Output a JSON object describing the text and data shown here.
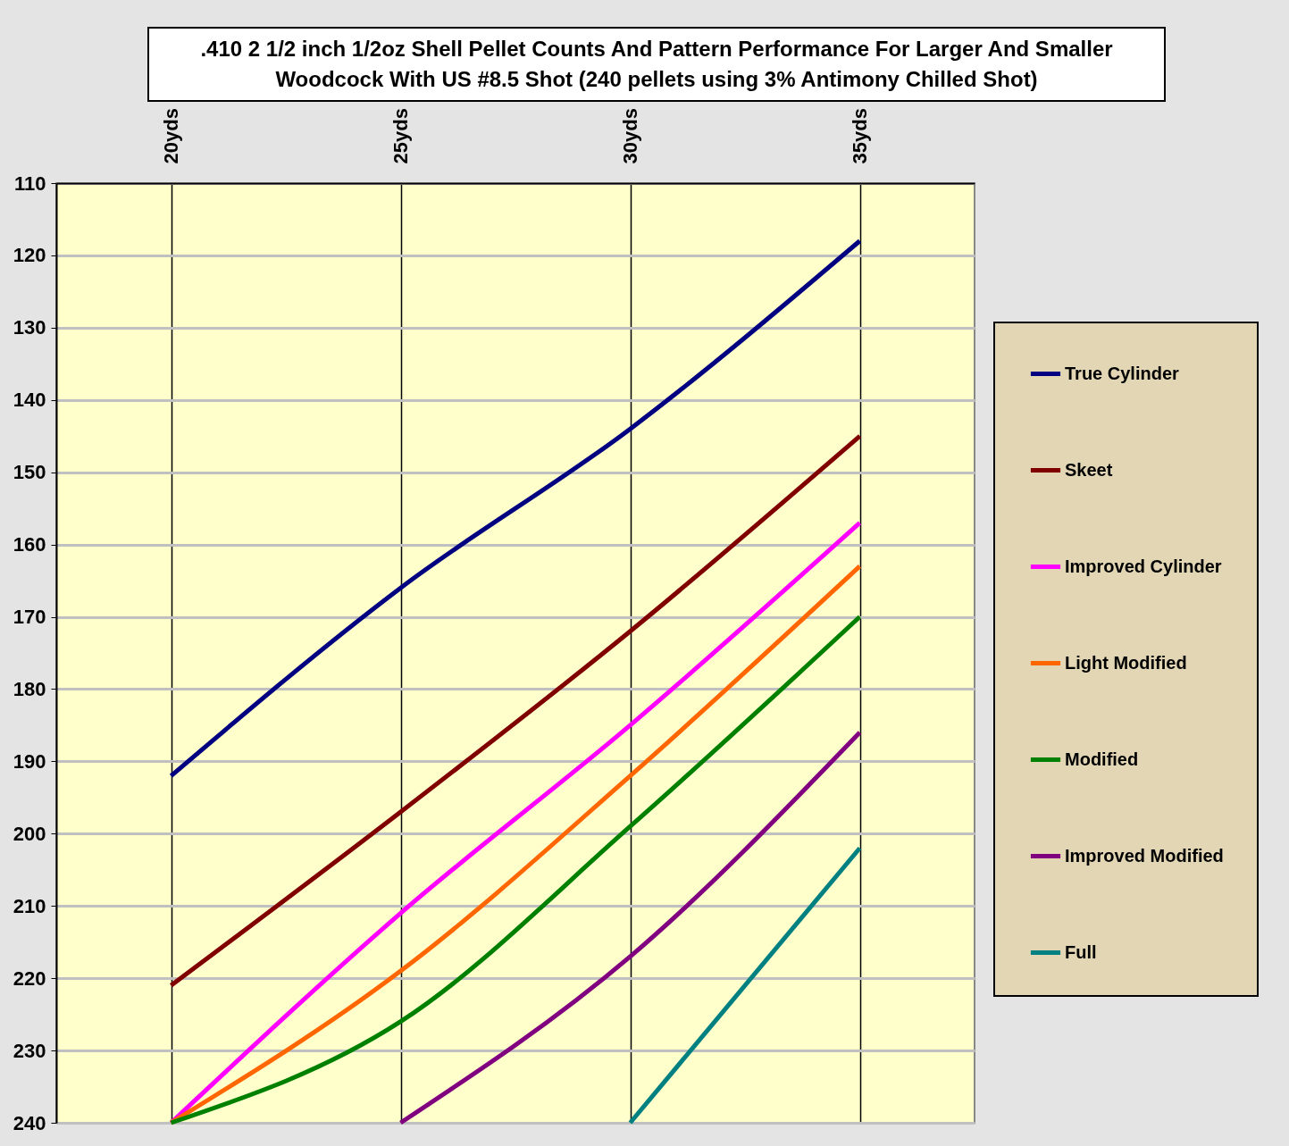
{
  "chart_data": {
    "type": "line",
    "title": ".410 2 1/2 inch 1/2oz Shell Pellet Counts And Pattern Performance For Larger And Smaller Woodcock With US #8.5 Shot (240 pellets using 3% Antimony Chilled Shot)",
    "categories": [
      "20yds",
      "25yds",
      "30yds",
      "35yds"
    ],
    "ylim": [
      240,
      110
    ],
    "yticks": [
      110,
      120,
      130,
      140,
      150,
      160,
      170,
      180,
      190,
      200,
      210,
      220,
      230,
      240
    ],
    "grid": true,
    "legend": "right",
    "marker": "none",
    "line_style": "solid",
    "series": [
      {
        "name": "True Cylinder",
        "color": "#000080",
        "values": [
          192,
          166,
          144,
          118
        ]
      },
      {
        "name": "Skeet",
        "color": "#800000",
        "values": [
          221,
          197,
          172,
          145
        ]
      },
      {
        "name": "Improved Cylinder",
        "color": "#ff00ff",
        "values": [
          240,
          211,
          185,
          157
        ]
      },
      {
        "name": "Light Modified",
        "color": "#ff6600",
        "values": [
          240,
          219,
          192,
          163
        ]
      },
      {
        "name": "Modified",
        "color": "#008000",
        "values": [
          240,
          226,
          199,
          170
        ]
      },
      {
        "name": "Improved Modified",
        "color": "#800080",
        "values": [
          null,
          240,
          217,
          186
        ]
      },
      {
        "name": "Full",
        "color": "#008080",
        "values": [
          null,
          null,
          240,
          202
        ]
      }
    ]
  }
}
